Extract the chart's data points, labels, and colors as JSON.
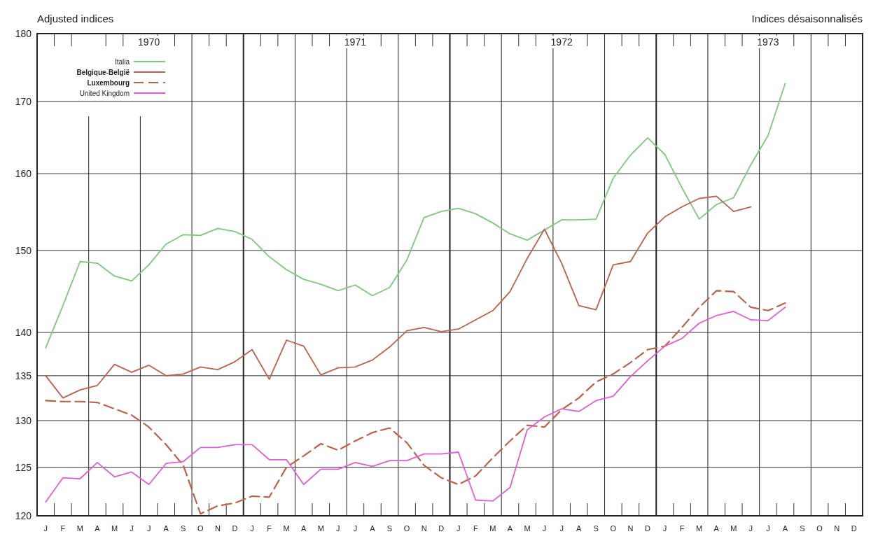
{
  "chart_data": {
    "type": "line",
    "title": "Adjusted indices",
    "subtitle": "Indices désaisonnalisés",
    "categories": [
      "J",
      "F",
      "M",
      "A",
      "M",
      "J",
      "J",
      "A",
      "S",
      "O",
      "N",
      "D",
      "J",
      "F",
      "M",
      "A",
      "M",
      "J",
      "J",
      "A",
      "S",
      "O",
      "N",
      "D",
      "J",
      "F",
      "M",
      "A",
      "M",
      "J",
      "J",
      "A",
      "S",
      "O",
      "N",
      "D",
      "J",
      "F",
      "M",
      "A",
      "M",
      "J",
      "J",
      "A",
      "S",
      "O",
      "N",
      "D"
    ],
    "series": [
      {
        "name": "Italia",
        "color": "#7cc97c",
        "values": [
          138.2,
          143.2,
          148.6,
          148.4,
          146.8,
          146.2,
          148.2,
          150.8,
          152.0,
          151.9,
          152.8,
          152.4,
          151.4,
          149.2,
          147.6,
          146.4,
          145.8,
          145.0,
          145.7,
          144.4,
          145.4,
          148.8,
          154.2,
          155.0,
          155.4,
          154.7,
          153.5,
          152.1,
          151.3,
          152.6,
          153.9,
          153.9,
          154.0,
          159.4,
          162.5,
          164.9,
          162.6,
          158.1,
          154.0,
          155.9,
          156.8,
          161.2,
          165.2,
          172.6,
          null,
          null,
          null,
          null
        ]
      },
      {
        "name": "Belgique-België",
        "color": "#b8634a",
        "values": [
          135.0,
          132.5,
          133.4,
          133.9,
          136.3,
          135.4,
          136.2,
          135.0,
          135.2,
          136.0,
          135.7,
          136.6,
          138.0,
          134.6,
          139.1,
          138.4,
          135.1,
          135.9,
          136.0,
          136.8,
          138.3,
          140.2,
          140.6,
          140.1,
          140.4,
          141.5,
          142.6,
          144.9,
          149.0,
          152.7,
          148.4,
          143.2,
          142.7,
          148.2,
          148.6,
          152.2,
          154.3,
          155.6,
          156.7,
          157.0,
          155.0,
          155.6,
          null,
          null,
          null,
          null,
          null,
          null
        ]
      },
      {
        "name": "Luxembourg",
        "color": "#b8634a",
        "line_style": "dashed",
        "values": [
          132.2,
          132.1,
          132.1,
          132.0,
          131.3,
          130.6,
          129.3,
          127.4,
          125.2,
          120.2,
          121.0,
          121.3,
          122.0,
          121.9,
          125.0,
          126.2,
          127.5,
          126.8,
          127.8,
          128.7,
          129.2,
          127.6,
          125.2,
          123.9,
          123.2,
          124.1,
          126.0,
          127.8,
          129.5,
          129.3,
          131.2,
          132.5,
          134.3,
          135.2,
          136.5,
          138.0,
          138.4,
          140.6,
          143.0,
          145.0,
          144.9,
          143.0,
          142.6,
          143.5,
          null,
          null,
          null,
          null
        ]
      },
      {
        "name": "United Kingdom",
        "color": "#e05ed2",
        "values": [
          121.4,
          123.9,
          123.8,
          125.5,
          124.0,
          124.5,
          123.2,
          125.4,
          125.6,
          127.1,
          127.1,
          127.4,
          127.4,
          125.8,
          125.8,
          123.2,
          124.8,
          124.8,
          125.5,
          125.1,
          125.7,
          125.7,
          126.4,
          126.4,
          126.6,
          121.6,
          121.5,
          122.9,
          129.0,
          130.4,
          131.3,
          131.0,
          132.2,
          132.7,
          134.9,
          136.7,
          138.4,
          139.3,
          141.1,
          142.0,
          142.5,
          141.5,
          141.4,
          143.0,
          null,
          null,
          null,
          null
        ]
      }
    ],
    "ylim": [
      120,
      180
    ],
    "yticks": [
      120,
      125,
      130,
      135,
      140,
      150,
      160,
      170,
      180
    ],
    "log": true,
    "grid": true,
    "legend": "top left",
    "line_style": "solid",
    "annotations": [
      "1970",
      "1971",
      "1972",
      "1973"
    ]
  }
}
